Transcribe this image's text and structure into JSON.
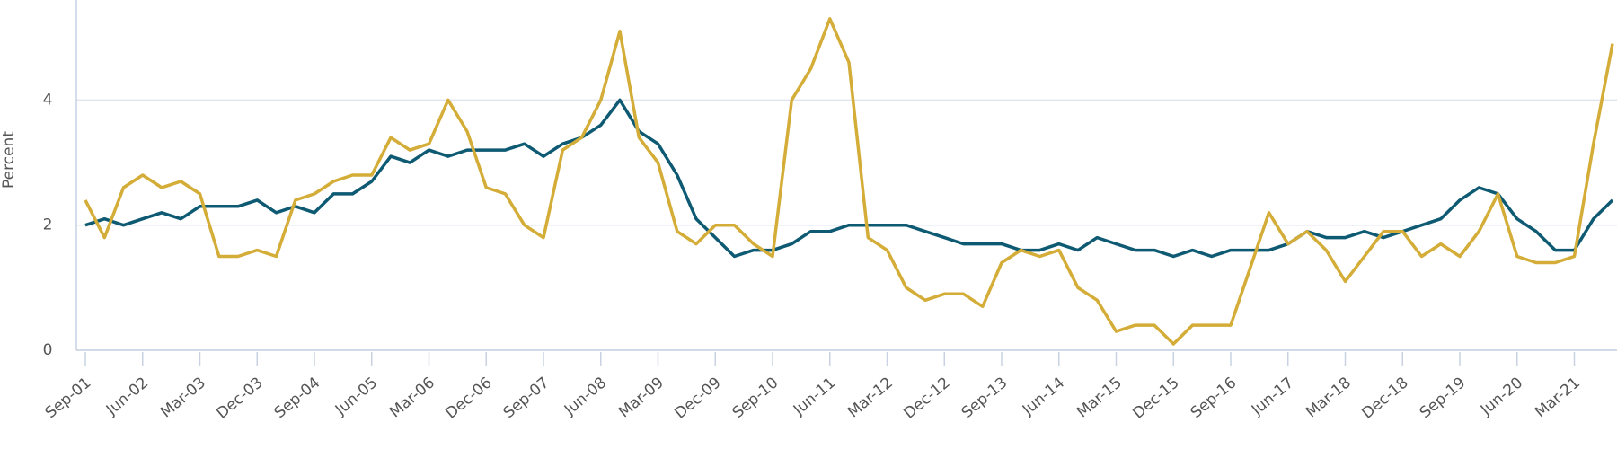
{
  "chart_data": {
    "type": "line",
    "ylabel": "Percent",
    "categories": [
      "Sep-01",
      null,
      null,
      "Jun-02",
      null,
      null,
      "Mar-03",
      null,
      null,
      "Dec-03",
      null,
      null,
      "Sep-04",
      null,
      null,
      "Jun-05",
      null,
      null,
      "Mar-06",
      null,
      null,
      "Dec-06",
      null,
      null,
      "Sep-07",
      null,
      null,
      "Jun-08",
      null,
      null,
      "Mar-09",
      null,
      null,
      "Dec-09",
      null,
      null,
      "Sep-10",
      null,
      null,
      "Jun-11",
      null,
      null,
      "Mar-12",
      null,
      null,
      "Dec-12",
      null,
      null,
      "Sep-13",
      null,
      null,
      "Jun-14",
      null,
      null,
      "Mar-15",
      null,
      null,
      "Dec-15",
      null,
      null,
      "Sep-16",
      null,
      null,
      "Jun-17",
      null,
      null,
      "Mar-18",
      null,
      null,
      "Dec-18",
      null,
      null,
      "Sep-19",
      null,
      null,
      "Jun-20",
      null,
      null,
      "Mar-21",
      null,
      null
    ],
    "series": [
      {
        "color": "#0e5a73",
        "values": [
          2.0,
          2.1,
          2.0,
          2.1,
          2.2,
          2.1,
          2.3,
          2.3,
          2.3,
          2.4,
          2.2,
          2.3,
          2.2,
          2.5,
          2.5,
          2.7,
          3.1,
          3.0,
          3.2,
          3.1,
          3.2,
          3.2,
          3.2,
          3.3,
          3.1,
          3.3,
          3.4,
          3.6,
          4.0,
          3.5,
          3.3,
          2.8,
          2.1,
          1.8,
          1.5,
          1.6,
          1.6,
          1.7,
          1.9,
          1.9,
          2.0,
          2.0,
          2.0,
          2.0,
          1.9,
          1.8,
          1.7,
          1.7,
          1.7,
          1.6,
          1.6,
          1.7,
          1.6,
          1.8,
          1.7,
          1.6,
          1.6,
          1.5,
          1.6,
          1.5,
          1.6,
          1.6,
          1.6,
          1.7,
          1.9,
          1.8,
          1.8,
          1.9,
          1.8,
          1.9,
          2.0,
          2.1,
          2.4,
          2.6,
          2.5,
          2.1,
          1.9,
          1.6,
          1.6,
          2.1,
          2.4
        ]
      },
      {
        "color": "#d4ad38",
        "values": [
          2.4,
          1.8,
          2.6,
          2.8,
          2.6,
          2.7,
          2.5,
          1.5,
          1.5,
          1.6,
          1.5,
          2.4,
          2.5,
          2.7,
          2.8,
          2.8,
          3.4,
          3.2,
          3.3,
          4.0,
          3.5,
          2.6,
          2.5,
          2.0,
          1.8,
          3.2,
          3.4,
          4.0,
          5.1,
          3.4,
          3.0,
          1.9,
          1.7,
          2.0,
          2.0,
          1.7,
          1.5,
          4.0,
          4.5,
          5.3,
          4.6,
          1.8,
          1.6,
          1.0,
          0.8,
          0.9,
          0.9,
          0.7,
          1.4,
          1.6,
          1.5,
          1.6,
          1.0,
          0.8,
          0.3,
          0.4,
          0.4,
          0.1,
          0.4,
          0.4,
          0.4,
          1.3,
          2.2,
          1.7,
          1.9,
          1.6,
          1.1,
          1.5,
          1.9,
          1.9,
          1.5,
          1.7,
          1.5,
          1.9,
          2.5,
          1.5,
          1.4,
          1.4,
          1.5,
          3.3,
          4.9
        ]
      }
    ],
    "ylim": [
      0,
      5.6
    ],
    "yticks": [
      0,
      2,
      4
    ],
    "grid": true
  }
}
